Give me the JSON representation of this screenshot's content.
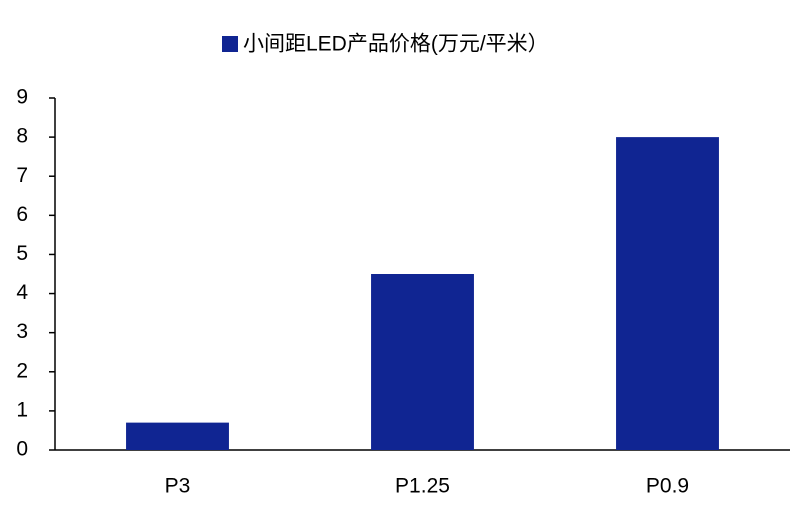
{
  "chart_data": {
    "type": "bar",
    "series": [
      {
        "name": "小间距LED产品价格(万元/平米）",
        "color": "#102592",
        "values": [
          0.7,
          4.5,
          8.0
        ]
      }
    ],
    "categories": [
      "P3",
      "P1.25",
      "P0.9"
    ],
    "ylim": [
      0,
      9
    ],
    "yticks": [
      0,
      1,
      2,
      3,
      4,
      5,
      6,
      7,
      8,
      9
    ],
    "grid": false,
    "legend": "top"
  }
}
